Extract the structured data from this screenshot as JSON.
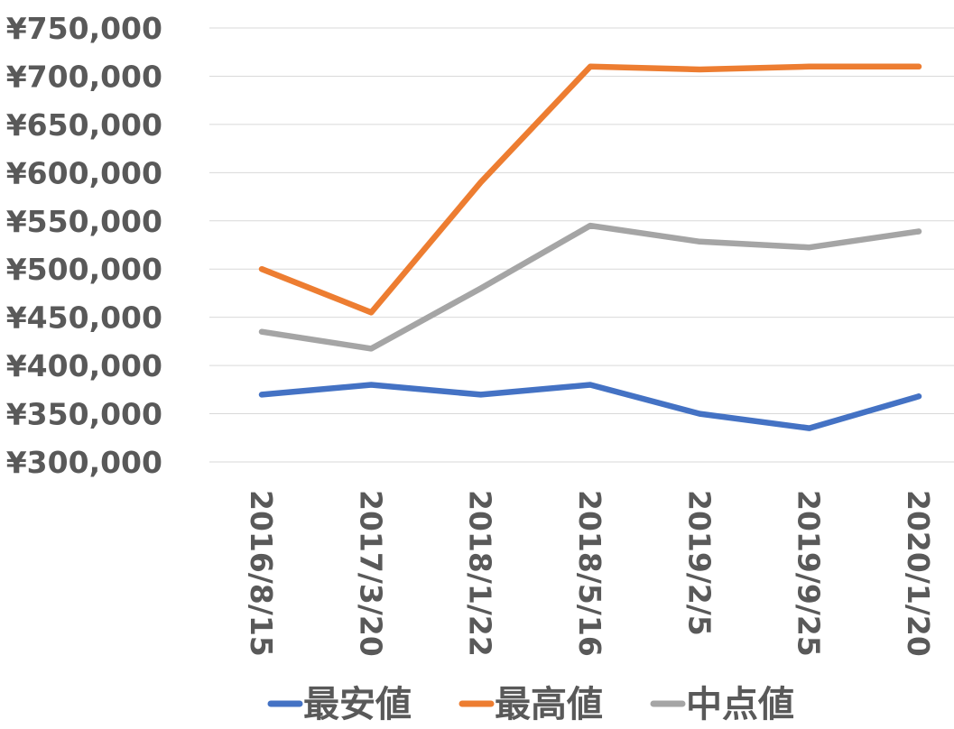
{
  "chart_data": {
    "type": "line",
    "title": "",
    "xlabel": "",
    "ylabel": "",
    "categories": [
      "2016/8/15",
      "2017/3/20",
      "2018/1/22",
      "2018/5/16",
      "2019/2/5",
      "2019/9/25",
      "2020/1/20"
    ],
    "ylim": [
      300000,
      750000
    ],
    "yticks": [
      300000,
      350000,
      400000,
      450000,
      500000,
      550000,
      600000,
      650000,
      700000,
      750000
    ],
    "ytick_labels": [
      "¥300,000",
      "¥350,000",
      "¥400,000",
      "¥450,000",
      "¥500,000",
      "¥550,000",
      "¥600,000",
      "¥650,000",
      "¥700,000",
      "¥750,000"
    ],
    "grid": true,
    "legend_position": "bottom",
    "series": [
      {
        "name": "最安値",
        "color": "#4472C4",
        "values": [
          369800,
          380000,
          369800,
          380000,
          350000,
          335000,
          368000
        ]
      },
      {
        "name": "最高値",
        "color": "#ED7D31",
        "values": [
          500000,
          455000,
          590000,
          710000,
          707000,
          710000,
          710000
        ]
      },
      {
        "name": "中点値",
        "color": "#A5A5A5",
        "values": [
          435000,
          417500,
          480000,
          545000,
          528500,
          522500,
          539000
        ]
      }
    ]
  }
}
